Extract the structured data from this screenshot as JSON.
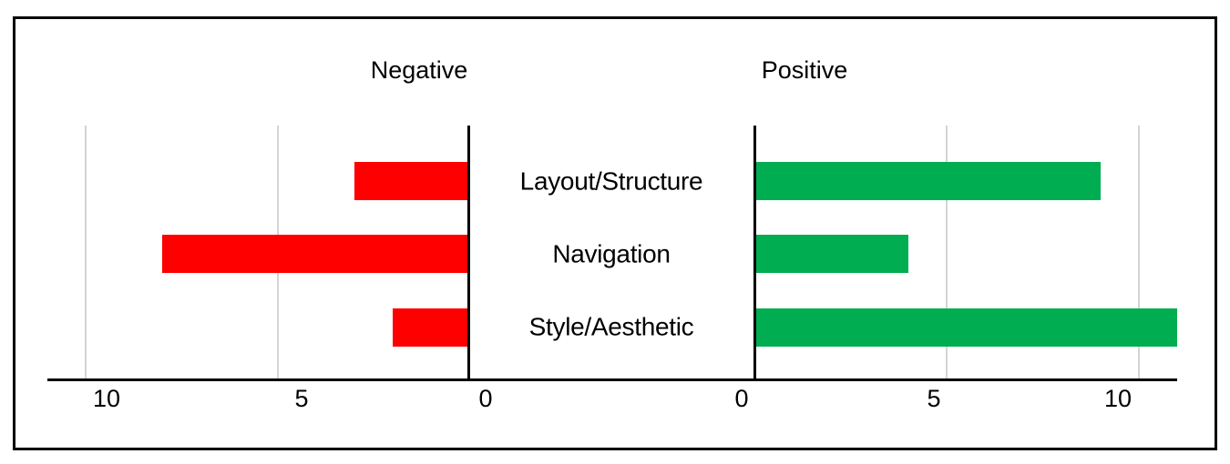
{
  "chart_data": {
    "type": "bar",
    "variant": "diverging-tornado",
    "orientation": "horizontal",
    "categories": [
      "Layout/Structure",
      "Navigation",
      "Style/Aesthetic"
    ],
    "series": [
      {
        "name": "Negative",
        "side": "left",
        "color": "#FF0000",
        "values": [
          3,
          8,
          2
        ]
      },
      {
        "name": "Positive",
        "side": "right",
        "color": "#00AD50",
        "values": [
          9,
          4,
          11
        ]
      }
    ],
    "negative_axis": {
      "min": 0,
      "max": 11,
      "ticks": [
        10,
        5,
        0
      ],
      "tick_labels": [
        "10",
        "5",
        "0"
      ]
    },
    "positive_axis": {
      "min": 0,
      "max": 11,
      "ticks": [
        0,
        5,
        10
      ],
      "tick_labels": [
        "0",
        "5",
        "10"
      ]
    },
    "gridlines": true,
    "gridline_color": "#D4D4D4",
    "axis_color": "#000000",
    "legend_position": "none"
  }
}
